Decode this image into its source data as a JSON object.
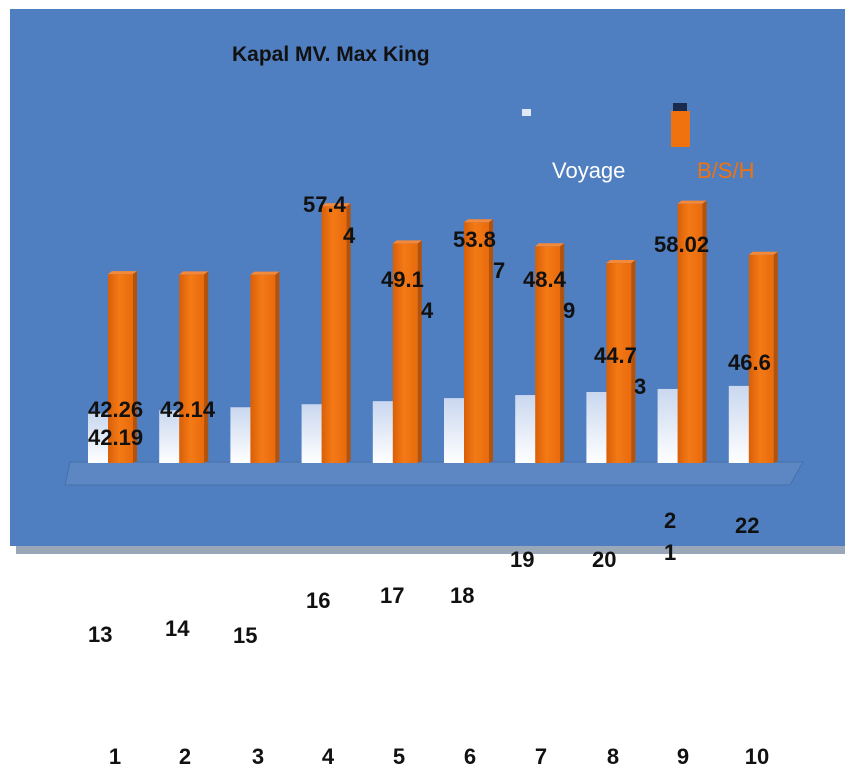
{
  "chart_data": {
    "type": "bar",
    "title": "Kapal MV. Max King",
    "categories": [
      "1",
      "2",
      "3",
      "4",
      "5",
      "6",
      "7",
      "8",
      "9",
      "10"
    ],
    "series": [
      {
        "name": "Voyage",
        "values": [
          13,
          14,
          15,
          16,
          17,
          18,
          19,
          20,
          21,
          22
        ],
        "color": "#dfe8f7"
      },
      {
        "name": "B/S/H",
        "values": [
          42.26,
          42.19,
          42.14,
          57.44,
          49.14,
          53.87,
          48.49,
          44.73,
          58.02,
          46.6
        ],
        "color": "#f0720f"
      }
    ],
    "voyage_labels": [
      "13",
      "14",
      "15",
      "16",
      "17",
      "18",
      "19",
      "20",
      "2\n1",
      "22"
    ],
    "bsh_labels": [
      "42.26",
      "42.19",
      "42.14",
      "57.4\n4",
      "49.1\n4",
      "53.8\n7",
      "48.4\n9",
      "44.7\n3",
      "58.02",
      "46.6"
    ],
    "legend": {
      "position": "top-right"
    },
    "grid": false,
    "plot_background": "#4f7fc0"
  }
}
